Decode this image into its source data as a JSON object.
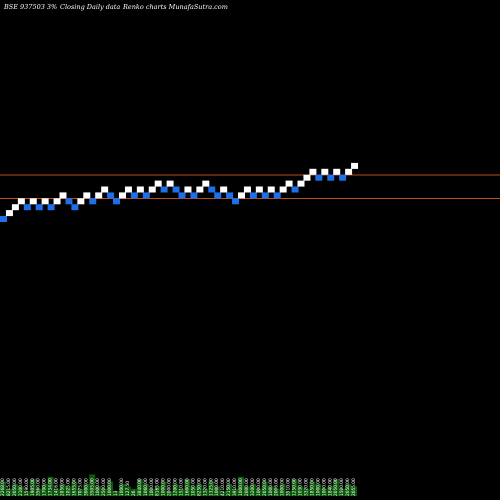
{
  "chart_data": {
    "type": "renko",
    "title": "BSE 937503 3%",
    "subtitle": "Closing Daily data",
    "subtitle2": "Renko charts MunafaSutra.com",
    "colors": {
      "background": "#000000",
      "up_brick": "#ffffff",
      "down_brick": "#1e6fe8",
      "reference_lines": "#b5501f",
      "volume": "#0a5a0a"
    },
    "reference_lines": [
      "upper",
      "lower"
    ],
    "bricks": [
      {
        "level": 0,
        "dir": "down"
      },
      {
        "level": 1,
        "dir": "up"
      },
      {
        "level": 2,
        "dir": "up"
      },
      {
        "level": 3,
        "dir": "up"
      },
      {
        "level": 2,
        "dir": "down"
      },
      {
        "level": 3,
        "dir": "up"
      },
      {
        "level": 2,
        "dir": "down"
      },
      {
        "level": 3,
        "dir": "up"
      },
      {
        "level": 2,
        "dir": "down"
      },
      {
        "level": 3,
        "dir": "up"
      },
      {
        "level": 4,
        "dir": "up"
      },
      {
        "level": 3,
        "dir": "down"
      },
      {
        "level": 2,
        "dir": "down"
      },
      {
        "level": 3,
        "dir": "up"
      },
      {
        "level": 4,
        "dir": "up"
      },
      {
        "level": 3,
        "dir": "down"
      },
      {
        "level": 4,
        "dir": "up"
      },
      {
        "level": 5,
        "dir": "up"
      },
      {
        "level": 4,
        "dir": "down"
      },
      {
        "level": 3,
        "dir": "down"
      },
      {
        "level": 4,
        "dir": "up"
      },
      {
        "level": 5,
        "dir": "up"
      },
      {
        "level": 4,
        "dir": "down"
      },
      {
        "level": 5,
        "dir": "up"
      },
      {
        "level": 4,
        "dir": "down"
      },
      {
        "level": 5,
        "dir": "up"
      },
      {
        "level": 6,
        "dir": "up"
      },
      {
        "level": 5,
        "dir": "down"
      },
      {
        "level": 6,
        "dir": "up"
      },
      {
        "level": 5,
        "dir": "down"
      },
      {
        "level": 4,
        "dir": "down"
      },
      {
        "level": 5,
        "dir": "up"
      },
      {
        "level": 4,
        "dir": "down"
      },
      {
        "level": 5,
        "dir": "up"
      },
      {
        "level": 6,
        "dir": "up"
      },
      {
        "level": 5,
        "dir": "down"
      },
      {
        "level": 4,
        "dir": "down"
      },
      {
        "level": 5,
        "dir": "up"
      },
      {
        "level": 4,
        "dir": "down"
      },
      {
        "level": 3,
        "dir": "down"
      },
      {
        "level": 4,
        "dir": "up"
      },
      {
        "level": 5,
        "dir": "up"
      },
      {
        "level": 4,
        "dir": "down"
      },
      {
        "level": 5,
        "dir": "up"
      },
      {
        "level": 4,
        "dir": "down"
      },
      {
        "level": 5,
        "dir": "up"
      },
      {
        "level": 4,
        "dir": "down"
      },
      {
        "level": 5,
        "dir": "up"
      },
      {
        "level": 6,
        "dir": "up"
      },
      {
        "level": 5,
        "dir": "down"
      },
      {
        "level": 6,
        "dir": "up"
      },
      {
        "level": 7,
        "dir": "up"
      },
      {
        "level": 8,
        "dir": "up"
      },
      {
        "level": 7,
        "dir": "down"
      },
      {
        "level": 8,
        "dir": "up"
      },
      {
        "level": 7,
        "dir": "down"
      },
      {
        "level": 8,
        "dir": "up"
      },
      {
        "level": 7,
        "dir": "down"
      },
      {
        "level": 8,
        "dir": "up"
      },
      {
        "level": 9,
        "dir": "up"
      }
    ],
    "volume_labels": [
      "2268.00",
      "8215.00",
      "2050.00",
      "2100.00",
      "1590.00",
      "1905.00",
      "3560.00",
      "1700.00",
      "1734.00",
      "1416.00",
      "2850.00",
      "1025.00",
      "1655.00",
      "7075.00",
      "3000.00",
      "3505.00",
      "1000.00",
      "2500.00",
      "1000.00",
      "13",
      "1000.00",
      "127.50",
      "26",
      "3840.00",
      "1060.00",
      "1000.00",
      "8165.00",
      "1000.00",
      "2000.00",
      "1200.00",
      "1510.00",
      "1600.00",
      "1050.00",
      "8250.00",
      "1320.00",
      "1325.00",
      "1000.00",
      "4210.00",
      "2150.00",
      "3910.00",
      "1000.00",
      "2000.00",
      "3200.00",
      "1000.00",
      "2050.00",
      "1000.00",
      "2006.00",
      "1000.00",
      "3510.00",
      "1250.00",
      "1030.00",
      "3320.00",
      "1850.00",
      "1000.00",
      "1000.00",
      "1840.00",
      "2050.00",
      "1500.00",
      "2050.00",
      "2055.00"
    ],
    "volume_values": [
      6,
      3,
      5,
      4,
      2,
      7,
      3,
      5,
      8,
      3,
      5,
      4,
      6,
      3,
      5,
      9,
      4,
      3,
      6,
      2,
      5,
      4,
      3,
      7,
      5,
      3,
      4,
      6,
      2,
      5,
      3,
      7,
      4,
      5,
      3,
      6,
      4,
      2,
      5,
      3,
      8,
      4,
      5,
      3,
      6,
      4,
      3,
      5,
      2,
      7,
      4,
      3,
      6,
      5,
      3,
      4,
      7,
      3,
      5,
      4
    ]
  }
}
